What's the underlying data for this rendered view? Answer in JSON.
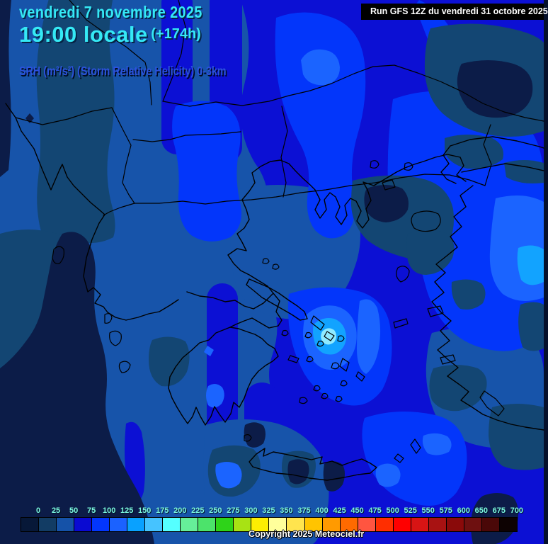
{
  "header": {
    "date_line": "vendredi 7 novembre 2025",
    "time_line": "19:00 locale",
    "forecast_offset": "(+174h)",
    "param_line": "SRH (m²/s²) (Storm Relative Helicity) 0-3km"
  },
  "run_banner": {
    "text": "Run GFS 12Z du vendredi 31 octobre 2025"
  },
  "footer": {
    "copyright": "Copyright 2025 Meteociel.fr"
  },
  "colorbar": {
    "unit": "m²/s²",
    "labels": [
      "0",
      "25",
      "50",
      "75",
      "100",
      "125",
      "150",
      "175",
      "200",
      "225",
      "250",
      "275",
      "300",
      "325",
      "350",
      "375",
      "400",
      "425",
      "450",
      "475",
      "500",
      "525",
      "550",
      "575",
      "600",
      "650",
      "675",
      "700"
    ],
    "colors": [
      "#071838",
      "#123c64",
      "#1552a8",
      "#0a0ad2",
      "#0336fc",
      "#1b62ff",
      "#09a1ff",
      "#46c3ff",
      "#55ffff",
      "#66ee99",
      "#4ce36b",
      "#2ed319",
      "#a8e214",
      "#fdee02",
      "#ffff9b",
      "#ffe44e",
      "#ffc400",
      "#ff9a00",
      "#ff6a00",
      "#ff5540",
      "#ff2e00",
      "#ff0000",
      "#d81414",
      "#a81212",
      "#8a0a0a",
      "#6e1010",
      "#4a0808",
      "#0d0202"
    ]
  },
  "map": {
    "palette": {
      "navy_lowest": "#0c1c48",
      "steel_low": "#134673",
      "blue_medium": "#1754aa",
      "blue_dark": "#0c10d4",
      "blue_bright": "#0336fa",
      "blue_lighter": "#1b64ff",
      "sky": "#12a3ff",
      "pale_cyan": "#8feaff",
      "coastline": "#000000"
    }
  },
  "text_colors": {
    "title_cyan": "#35e9f5",
    "title_shadow": "#062445",
    "param_blue": "#2b52dd",
    "scale_label": "#7cf8e0"
  }
}
